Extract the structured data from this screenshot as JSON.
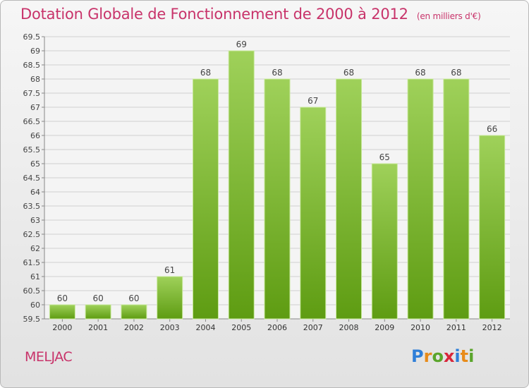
{
  "header": {
    "title": "Dotation Globale de Fonctionnement de 2000 à 2012",
    "unit": "(en milliers d'€)"
  },
  "commune": "MELJAC",
  "brand": {
    "letters": [
      "P",
      "r",
      "o",
      "x",
      "i",
      "t",
      "i"
    ],
    "colors": [
      "#2f7fd8",
      "#e88b1a",
      "#5aa52b",
      "#d8263a",
      "#2f7fd8",
      "#e88b1a",
      "#5aa52b"
    ]
  },
  "chart_data": {
    "type": "bar",
    "title": "Dotation Globale de Fonctionnement de 2000 à 2012",
    "subtitle": "(en milliers d'€)",
    "categories": [
      "2000",
      "2001",
      "2002",
      "2003",
      "2004",
      "2005",
      "2006",
      "2007",
      "2008",
      "2009",
      "2010",
      "2011",
      "2012"
    ],
    "values": [
      60,
      60,
      60,
      61,
      68,
      69,
      68,
      67,
      68,
      65,
      68,
      68,
      66
    ],
    "data_labels": [
      "60",
      "60",
      "60",
      "61",
      "68",
      "69",
      "68",
      "67",
      "68",
      "65",
      "68",
      "68",
      "66"
    ],
    "ylim": [
      59.5,
      69.5
    ],
    "yticks": [
      "59.5",
      "60",
      "60.5",
      "61",
      "61.5",
      "62",
      "62.5",
      "63",
      "63.5",
      "64",
      "64.5",
      "65",
      "65.5",
      "66",
      "66.5",
      "67",
      "67.5",
      "68",
      "68.5",
      "69",
      "69.5"
    ],
    "grid": true,
    "bar_color_top": "#9fd15a",
    "bar_color_bottom": "#5e9c12"
  }
}
